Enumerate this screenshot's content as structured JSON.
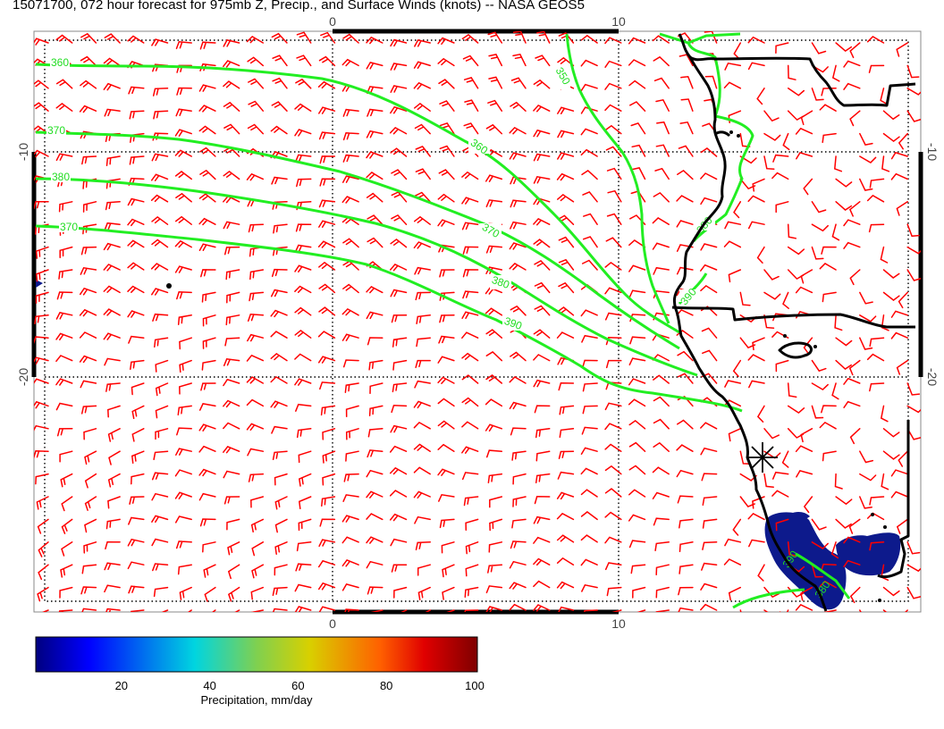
{
  "title": "15071700, 072 hour forecast for 975mb Z, Precip., and Surface Winds (knots) -- NASA GEOS5",
  "axes": {
    "top_labels": [
      "0",
      "10"
    ],
    "bottom_labels": [
      "0",
      "10"
    ],
    "left_labels": [
      "-10",
      "-20"
    ],
    "right_labels": [
      "-10",
      "-20"
    ]
  },
  "contour_labels": [
    "360",
    "370",
    "380",
    "370",
    "350",
    "360",
    "370",
    "380",
    "390",
    "390",
    "380",
    "390",
    "380"
  ],
  "colorbar": {
    "ticks": [
      "20",
      "40",
      "60",
      "80",
      "100"
    ],
    "caption": "Precipitation, mm/day",
    "range": [
      0,
      100
    ]
  },
  "colors": {
    "barbs": "#ff0000",
    "contours": "#22ee22",
    "coast": "#000000",
    "precip": "#0d1a8c"
  },
  "icons": {
    "station_marker": "asterisk-marker-icon"
  }
}
